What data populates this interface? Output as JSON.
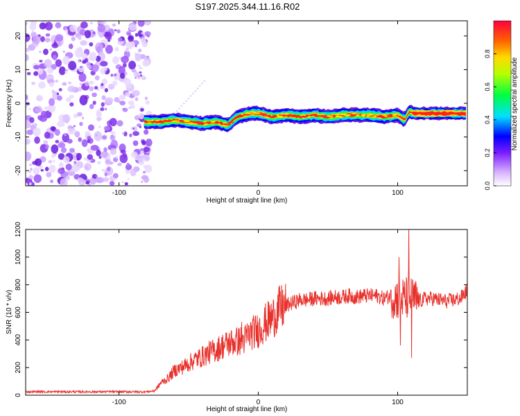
{
  "chart_data": [
    {
      "type": "heatmap",
      "title": "S197.2025.344.11.16.R02",
      "xlabel": "Height of straight line (km)",
      "ylabel": "Frequency (Hz)",
      "xlim": [
        -167,
        150
      ],
      "ylim": [
        -24.5,
        24.5
      ],
      "x_ticks": [
        -100,
        0,
        100
      ],
      "y_ticks": [
        -20,
        -10,
        0,
        10,
        20
      ],
      "colorbar": {
        "label": "Normalized spectral amplitude",
        "range": [
          0,
          1
        ],
        "ticks": [
          0.0,
          0.2,
          0.4,
          0.6,
          0.8
        ],
        "tick_labels": [
          "0.0",
          "0.2",
          "0.4",
          "0.6",
          "0.8"
        ]
      },
      "noise_region_x": [
        -167,
        -82
      ],
      "ridge": {
        "x": [
          -82,
          -70,
          -60,
          -50,
          -40,
          -30,
          -22,
          -15,
          -5,
          0,
          10,
          20,
          30,
          40,
          50,
          60,
          70,
          80,
          90,
          100,
          105,
          108,
          112,
          120,
          150
        ],
        "freq": [
          -5.5,
          -5.5,
          -5,
          -5.5,
          -6,
          -5.5,
          -6.5,
          -4,
          -3,
          -3,
          -4,
          -3.5,
          -4,
          -3.5,
          -4,
          -3.5,
          -3.5,
          -3.5,
          -4,
          -3.5,
          -5,
          -2.5,
          -3,
          -3,
          -3
        ]
      }
    },
    {
      "type": "line",
      "xlabel": "Height of straight line (km)",
      "ylabel": "SNR (10 * v/v)",
      "xlim": [
        -167,
        150
      ],
      "ylim": [
        0,
        1200
      ],
      "x_ticks": [
        -100,
        0,
        100
      ],
      "y_ticks": [
        0,
        200,
        400,
        600,
        800,
        1000,
        1200
      ],
      "series": [
        {
          "name": "SNR",
          "color": "#e8312c",
          "x": [
            -167,
            -150,
            -130,
            -110,
            -90,
            -80,
            -75,
            -72,
            -70,
            -65,
            -60,
            -55,
            -50,
            -45,
            -40,
            -35,
            -30,
            -25,
            -20,
            -15,
            -10,
            -5,
            0,
            5,
            10,
            15,
            20,
            25,
            30,
            35,
            40,
            45,
            50,
            55,
            60,
            65,
            70,
            75,
            80,
            85,
            90,
            95,
            100,
            105,
            110,
            115,
            120,
            125,
            130,
            135,
            140,
            145,
            150
          ],
          "values": [
            25,
            25,
            25,
            25,
            25,
            25,
            30,
            60,
            90,
            120,
            180,
            200,
            230,
            260,
            280,
            310,
            330,
            360,
            380,
            390,
            400,
            450,
            470,
            520,
            560,
            620,
            650,
            670,
            690,
            690,
            700,
            700,
            700,
            710,
            710,
            720,
            710,
            720,
            720,
            720,
            700,
            720,
            700,
            700,
            700,
            680,
            700,
            700,
            690,
            680,
            690,
            700,
            760
          ],
          "spikes": [
            {
              "x": 101,
              "value": 1000
            },
            {
              "x": 102,
              "value": 360
            },
            {
              "x": 108,
              "value": 1200
            },
            {
              "x": 110,
              "value": 270
            },
            {
              "x": -12,
              "value": 530
            },
            {
              "x": -8,
              "value": 520
            },
            {
              "x": 10,
              "value": 620
            },
            {
              "x": 150,
              "value": 830
            }
          ]
        }
      ]
    }
  ]
}
